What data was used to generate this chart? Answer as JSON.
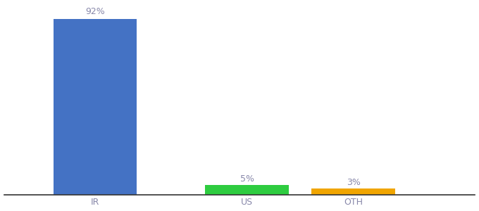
{
  "categories": [
    "IR",
    "US",
    "OTH"
  ],
  "values": [
    92,
    5,
    3
  ],
  "bar_colors": [
    "#4472c4",
    "#2ecc40",
    "#f0a500"
  ],
  "labels": [
    "92%",
    "5%",
    "3%"
  ],
  "background_color": "#ffffff",
  "text_color": "#8888aa",
  "label_fontsize": 9,
  "tick_fontsize": 9,
  "ylim": [
    0,
    100
  ],
  "bar_width": 0.55,
  "x_positions": [
    0.5,
    1.5,
    2.2
  ],
  "xlim": [
    -0.1,
    3.0
  ]
}
